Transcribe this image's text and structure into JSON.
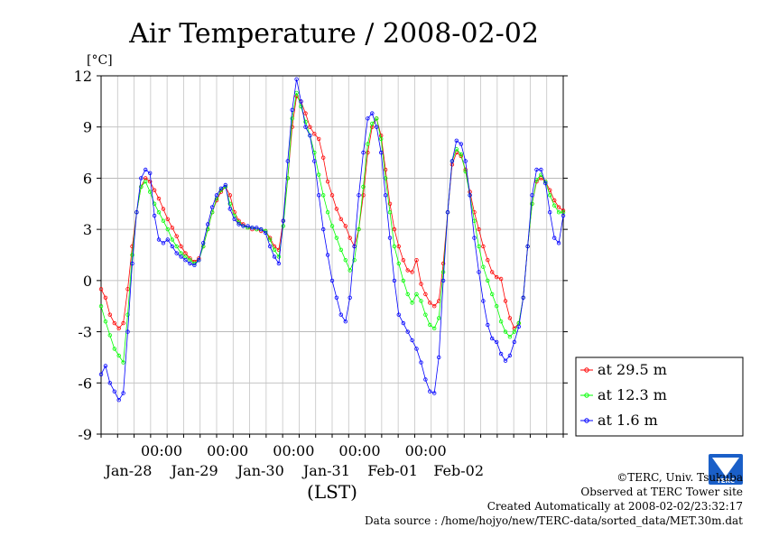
{
  "chart_data": {
    "type": "line",
    "title": "Air Temperature / 2008-02-02",
    "ylabel": "[°C]",
    "xlabel": "(LST)",
    "ylim": [
      -9,
      12
    ],
    "yticks": [
      "12",
      "9",
      "6",
      "3",
      "0",
      "-3",
      "-6",
      "-9"
    ],
    "x_day_labels": [
      "Jan-28",
      "Jan-29",
      "Jan-30",
      "Jan-31",
      "Feb-01",
      "Feb-02"
    ],
    "x_time_label": "00:00",
    "grid": true,
    "legend_position": "right",
    "series": [
      {
        "name": "at 29.5 m",
        "color": "#ff0000",
        "marker": "circle",
        "points": [
          [
            0,
            -0.5
          ],
          [
            1,
            -1
          ],
          [
            2,
            -2
          ],
          [
            3,
            -2.5
          ],
          [
            4,
            -2.8
          ],
          [
            5,
            -2.5
          ],
          [
            6,
            -0.5
          ],
          [
            7,
            2
          ],
          [
            8,
            4
          ],
          [
            9,
            5.5
          ],
          [
            10,
            6
          ],
          [
            11,
            5.8
          ],
          [
            12,
            5.3
          ],
          [
            13,
            4.8
          ],
          [
            14,
            4.2
          ],
          [
            15,
            3.6
          ],
          [
            16,
            3.1
          ],
          [
            17,
            2.6
          ],
          [
            18,
            2
          ],
          [
            19,
            1.6
          ],
          [
            20,
            1.3
          ],
          [
            21,
            1.1
          ],
          [
            22,
            1.3
          ],
          [
            23,
            2
          ],
          [
            24,
            3
          ],
          [
            25,
            4
          ],
          [
            26,
            4.7
          ],
          [
            27,
            5.2
          ],
          [
            28,
            5.5
          ],
          [
            29,
            5
          ],
          [
            30,
            4
          ],
          [
            31,
            3.5
          ],
          [
            32,
            3.3
          ],
          [
            33,
            3.1
          ],
          [
            34,
            3
          ],
          [
            35,
            3
          ],
          [
            36,
            2.9
          ],
          [
            37,
            2.9
          ],
          [
            38,
            2.5
          ],
          [
            39,
            2
          ],
          [
            40,
            1.8
          ],
          [
            41,
            3.5
          ],
          [
            42,
            6
          ],
          [
            43,
            9
          ],
          [
            44,
            10.8
          ],
          [
            45,
            10.5
          ],
          [
            46,
            9.8
          ],
          [
            47,
            9
          ],
          [
            48,
            8.6
          ],
          [
            49,
            8.3
          ],
          [
            50,
            7.2
          ],
          [
            51,
            5.8
          ],
          [
            52,
            5
          ],
          [
            53,
            4.2
          ],
          [
            54,
            3.6
          ],
          [
            55,
            3.2
          ],
          [
            56,
            2.5
          ],
          [
            57,
            2
          ],
          [
            58,
            3
          ],
          [
            59,
            5
          ],
          [
            60,
            7.5
          ],
          [
            61,
            9
          ],
          [
            62,
            9.5
          ],
          [
            63,
            8.5
          ],
          [
            64,
            6.5
          ],
          [
            65,
            4.5
          ],
          [
            66,
            3
          ],
          [
            67,
            2
          ],
          [
            68,
            1.2
          ],
          [
            69,
            0.6
          ],
          [
            70,
            0.5
          ],
          [
            71,
            1.2
          ],
          [
            72,
            -0.2
          ],
          [
            73,
            -0.8
          ],
          [
            74,
            -1.3
          ],
          [
            75,
            -1.5
          ],
          [
            76,
            -1.2
          ],
          [
            77,
            1
          ],
          [
            78,
            4
          ],
          [
            79,
            6.8
          ],
          [
            80,
            7.5
          ],
          [
            81,
            7.3
          ],
          [
            82,
            6.5
          ],
          [
            83,
            5.2
          ],
          [
            84,
            4
          ],
          [
            85,
            3
          ],
          [
            86,
            2
          ],
          [
            87,
            1.2
          ],
          [
            88,
            0.5
          ],
          [
            89,
            0.2
          ],
          [
            90,
            0.1
          ],
          [
            91,
            -1.2
          ],
          [
            92,
            -2.2
          ],
          [
            93,
            -2.8
          ],
          [
            94,
            -2.5
          ],
          [
            95,
            -1
          ],
          [
            96,
            2
          ],
          [
            97,
            4.5
          ],
          [
            98,
            5.8
          ],
          [
            99,
            6
          ],
          [
            100,
            5.8
          ],
          [
            101,
            5.3
          ],
          [
            102,
            4.7
          ],
          [
            103,
            4.3
          ],
          [
            104,
            4.1
          ]
        ]
      },
      {
        "name": "at 12.3 m",
        "color": "#00ff00",
        "marker": "circle",
        "points": [
          [
            0,
            -1.5
          ],
          [
            1,
            -2.4
          ],
          [
            2,
            -3.2
          ],
          [
            3,
            -4
          ],
          [
            4,
            -4.4
          ],
          [
            5,
            -4.8
          ],
          [
            6,
            -2
          ],
          [
            7,
            1.5
          ],
          [
            8,
            4
          ],
          [
            9,
            5.5
          ],
          [
            10,
            5.8
          ],
          [
            11,
            5.2
          ],
          [
            12,
            4.5
          ],
          [
            13,
            4
          ],
          [
            14,
            3.5
          ],
          [
            15,
            3
          ],
          [
            16,
            2.4
          ],
          [
            17,
            2
          ],
          [
            18,
            1.6
          ],
          [
            19,
            1.4
          ],
          [
            20,
            1.2
          ],
          [
            21,
            1
          ],
          [
            22,
            1.2
          ],
          [
            23,
            2
          ],
          [
            24,
            3
          ],
          [
            25,
            4
          ],
          [
            26,
            4.8
          ],
          [
            27,
            5.3
          ],
          [
            28,
            5.5
          ],
          [
            29,
            4.5
          ],
          [
            30,
            3.8
          ],
          [
            31,
            3.4
          ],
          [
            32,
            3.2
          ],
          [
            33,
            3.1
          ],
          [
            34,
            3.1
          ],
          [
            35,
            3
          ],
          [
            36,
            3
          ],
          [
            37,
            2.9
          ],
          [
            38,
            2.4
          ],
          [
            39,
            1.8
          ],
          [
            40,
            1.4
          ],
          [
            41,
            3.2
          ],
          [
            42,
            6
          ],
          [
            43,
            9.5
          ],
          [
            44,
            11
          ],
          [
            45,
            10.2
          ],
          [
            46,
            9.3
          ],
          [
            47,
            8.5
          ],
          [
            48,
            7.5
          ],
          [
            49,
            6.2
          ],
          [
            50,
            5
          ],
          [
            51,
            4
          ],
          [
            52,
            3.2
          ],
          [
            53,
            2.5
          ],
          [
            54,
            1.8
          ],
          [
            55,
            1.2
          ],
          [
            56,
            0.6
          ],
          [
            57,
            1.2
          ],
          [
            58,
            3
          ],
          [
            59,
            5.5
          ],
          [
            60,
            8
          ],
          [
            61,
            9.2
          ],
          [
            62,
            9.5
          ],
          [
            63,
            8.3
          ],
          [
            64,
            6
          ],
          [
            65,
            4
          ],
          [
            66,
            2
          ],
          [
            67,
            1
          ],
          [
            68,
            0
          ],
          [
            69,
            -0.8
          ],
          [
            70,
            -1.3
          ],
          [
            71,
            -0.8
          ],
          [
            72,
            -1.2
          ],
          [
            73,
            -2
          ],
          [
            74,
            -2.6
          ],
          [
            75,
            -2.8
          ],
          [
            76,
            -2.2
          ],
          [
            77,
            0.5
          ],
          [
            78,
            4
          ],
          [
            79,
            7
          ],
          [
            80,
            7.7
          ],
          [
            81,
            7.4
          ],
          [
            82,
            6.4
          ],
          [
            83,
            5
          ],
          [
            84,
            3.5
          ],
          [
            85,
            2
          ],
          [
            86,
            0.8
          ],
          [
            87,
            0
          ],
          [
            88,
            -0.8
          ],
          [
            89,
            -1.5
          ],
          [
            90,
            -2.4
          ],
          [
            91,
            -3
          ],
          [
            92,
            -3.3
          ],
          [
            93,
            -3
          ],
          [
            94,
            -2.5
          ],
          [
            95,
            -1
          ],
          [
            96,
            2
          ],
          [
            97,
            4.5
          ],
          [
            98,
            5.9
          ],
          [
            99,
            6.2
          ],
          [
            100,
            5.8
          ],
          [
            101,
            5
          ],
          [
            102,
            4.4
          ],
          [
            103,
            4
          ],
          [
            104,
            4
          ]
        ]
      },
      {
        "name": "at 1.6 m",
        "color": "#0000ff",
        "marker": "circle",
        "points": [
          [
            0,
            -5.5
          ],
          [
            1,
            -5
          ],
          [
            2,
            -6
          ],
          [
            3,
            -6.5
          ],
          [
            4,
            -7
          ],
          [
            5,
            -6.6
          ],
          [
            6,
            -3
          ],
          [
            7,
            1
          ],
          [
            8,
            4
          ],
          [
            9,
            6
          ],
          [
            10,
            6.5
          ],
          [
            11,
            6.3
          ],
          [
            12,
            3.8
          ],
          [
            13,
            2.4
          ],
          [
            14,
            2.2
          ],
          [
            15,
            2.4
          ],
          [
            16,
            2
          ],
          [
            17,
            1.6
          ],
          [
            18,
            1.4
          ],
          [
            19,
            1.2
          ],
          [
            20,
            1
          ],
          [
            21,
            0.9
          ],
          [
            22,
            1.2
          ],
          [
            23,
            2.2
          ],
          [
            24,
            3.3
          ],
          [
            25,
            4.3
          ],
          [
            26,
            5
          ],
          [
            27,
            5.4
          ],
          [
            28,
            5.6
          ],
          [
            29,
            4.2
          ],
          [
            30,
            3.6
          ],
          [
            31,
            3.3
          ],
          [
            32,
            3.2
          ],
          [
            33,
            3.2
          ],
          [
            34,
            3.1
          ],
          [
            35,
            3.1
          ],
          [
            36,
            3
          ],
          [
            37,
            2.8
          ],
          [
            38,
            2
          ],
          [
            39,
            1.4
          ],
          [
            40,
            1
          ],
          [
            41,
            3.5
          ],
          [
            42,
            7
          ],
          [
            43,
            10
          ],
          [
            44,
            11.8
          ],
          [
            45,
            10.5
          ],
          [
            46,
            9
          ],
          [
            47,
            8.5
          ],
          [
            48,
            7
          ],
          [
            49,
            5
          ],
          [
            50,
            3
          ],
          [
            51,
            1.5
          ],
          [
            52,
            0
          ],
          [
            53,
            -1
          ],
          [
            54,
            -2
          ],
          [
            55,
            -2.4
          ],
          [
            56,
            -1
          ],
          [
            57,
            2
          ],
          [
            58,
            5
          ],
          [
            59,
            7.5
          ],
          [
            60,
            9.5
          ],
          [
            61,
            9.8
          ],
          [
            62,
            9
          ],
          [
            63,
            7.5
          ],
          [
            64,
            5
          ],
          [
            65,
            2.5
          ],
          [
            66,
            0
          ],
          [
            67,
            -2
          ],
          [
            68,
            -2.5
          ],
          [
            69,
            -3
          ],
          [
            70,
            -3.5
          ],
          [
            71,
            -4
          ],
          [
            72,
            -4.8
          ],
          [
            73,
            -5.8
          ],
          [
            74,
            -6.5
          ],
          [
            75,
            -6.6
          ],
          [
            76,
            -4.5
          ],
          [
            77,
            0
          ],
          [
            78,
            4
          ],
          [
            79,
            7
          ],
          [
            80,
            8.2
          ],
          [
            81,
            8
          ],
          [
            82,
            7
          ],
          [
            83,
            5
          ],
          [
            84,
            2.5
          ],
          [
            85,
            0.5
          ],
          [
            86,
            -1.2
          ],
          [
            87,
            -2.6
          ],
          [
            88,
            -3.4
          ],
          [
            89,
            -3.6
          ],
          [
            90,
            -4.3
          ],
          [
            91,
            -4.7
          ],
          [
            92,
            -4.4
          ],
          [
            93,
            -3.6
          ],
          [
            94,
            -2.7
          ],
          [
            95,
            -1
          ],
          [
            96,
            2
          ],
          [
            97,
            5
          ],
          [
            98,
            6.5
          ],
          [
            99,
            6.5
          ],
          [
            100,
            5.7
          ],
          [
            101,
            4
          ],
          [
            102,
            2.5
          ],
          [
            103,
            2.2
          ],
          [
            104,
            3.8
          ]
        ]
      }
    ]
  },
  "footer": {
    "copyright": "©TERC, Univ. Tsukuba",
    "observed": "Observed at TERC Tower site",
    "created": "Created Automatically at 2008-02-02/23:32:17",
    "source": "Data source : /home/hojyo/new/TERC-data/sorted_data/MET.30m.dat",
    "logo_text": "TERC"
  }
}
